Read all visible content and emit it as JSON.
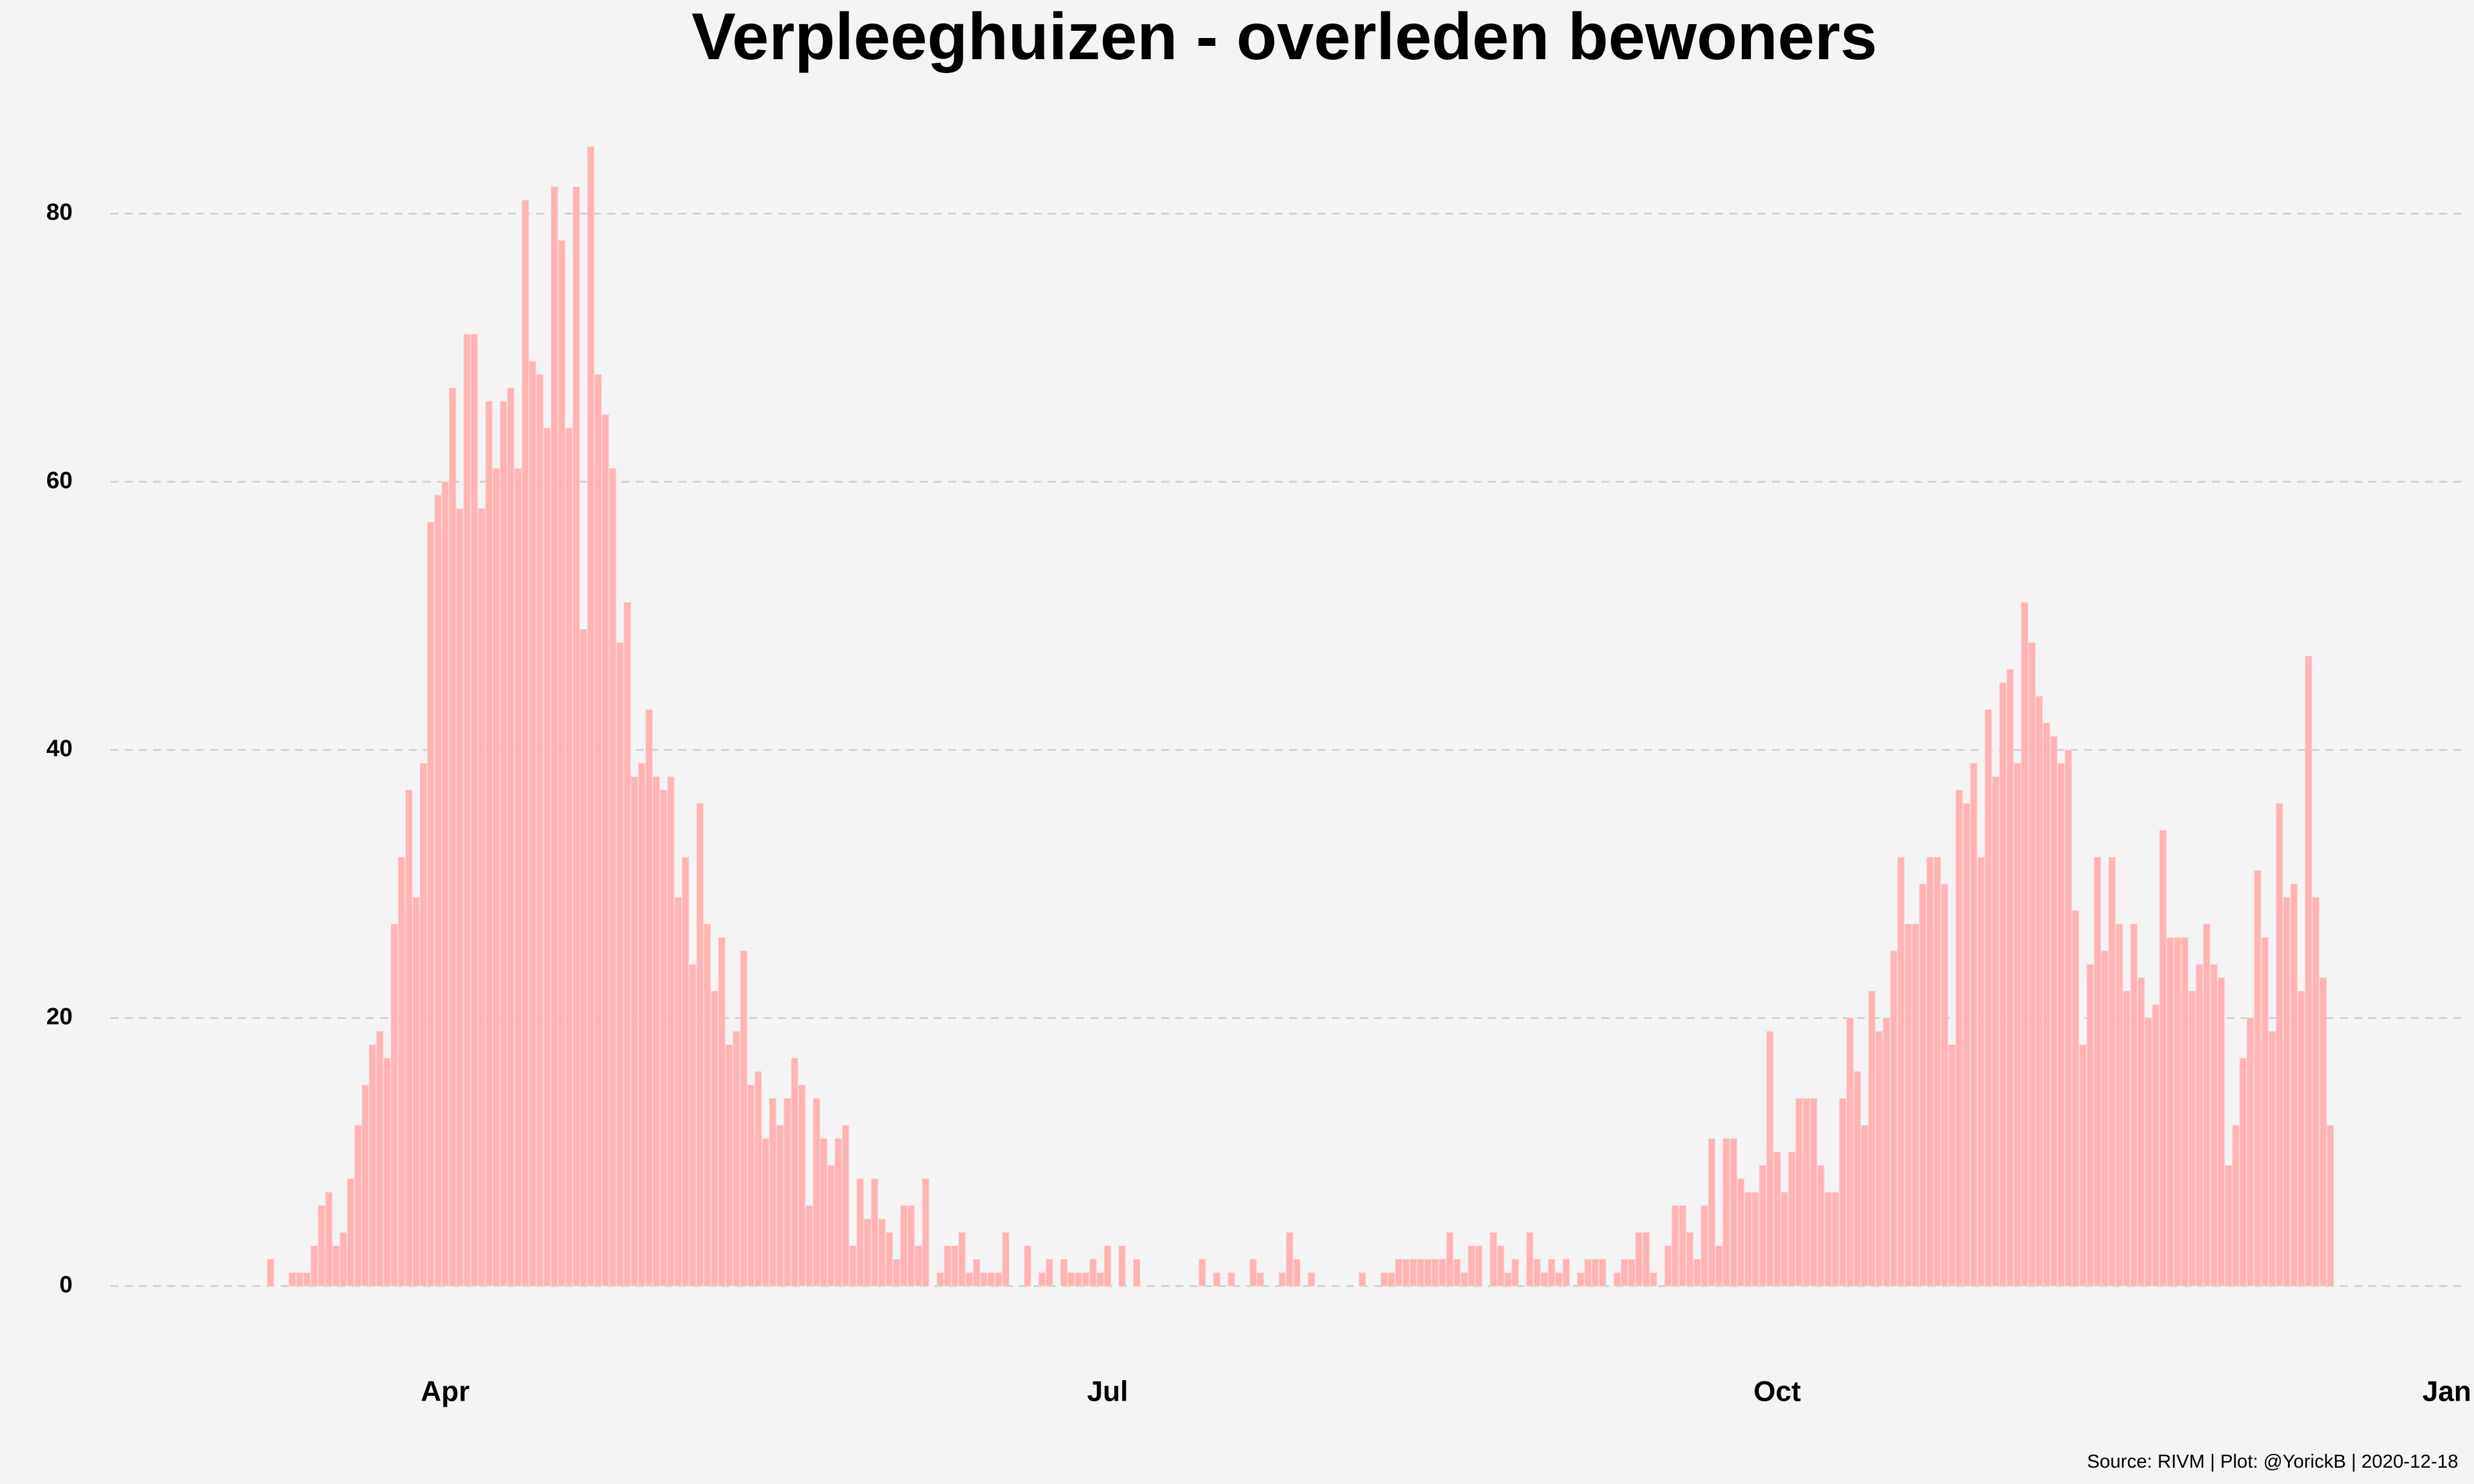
{
  "chart_data": {
    "type": "bar",
    "title": "Verpleeghuizen - overleden bewoners",
    "caption": "Source: RIVM | Plot: @YorickB |  2020-12-18",
    "color": "#ffb3b3",
    "grid": true,
    "xlim": [
      46,
      369
    ],
    "xticks": [
      {
        "value": 92,
        "label": "Apr"
      },
      {
        "value": 183,
        "label": "Jul"
      },
      {
        "value": 275,
        "label": "Oct"
      },
      {
        "value": 367,
        "label": "Jan"
      }
    ],
    "ylim": [
      -4,
      86
    ],
    "yticks": [
      0,
      20,
      40,
      60,
      80
    ],
    "x": [
      68,
      69,
      70,
      71,
      72,
      73,
      74,
      75,
      76,
      77,
      78,
      79,
      80,
      81,
      82,
      83,
      84,
      85,
      86,
      87,
      88,
      89,
      90,
      91,
      92,
      93,
      94,
      95,
      96,
      97,
      98,
      99,
      100,
      101,
      102,
      103,
      104,
      105,
      106,
      107,
      108,
      109,
      110,
      111,
      112,
      113,
      114,
      115,
      116,
      117,
      118,
      119,
      120,
      121,
      122,
      123,
      124,
      125,
      126,
      127,
      128,
      129,
      130,
      131,
      132,
      133,
      134,
      135,
      136,
      137,
      138,
      139,
      140,
      141,
      142,
      143,
      144,
      145,
      146,
      147,
      148,
      149,
      150,
      151,
      152,
      153,
      154,
      155,
      156,
      157,
      158,
      159,
      160,
      161,
      162,
      163,
      164,
      165,
      166,
      167,
      168,
      169,
      170,
      171,
      172,
      173,
      174,
      175,
      176,
      177,
      178,
      179,
      180,
      181,
      182,
      183,
      184,
      185,
      186,
      187,
      188,
      189,
      190,
      191,
      192,
      193,
      194,
      195,
      196,
      197,
      198,
      199,
      200,
      201,
      202,
      203,
      204,
      205,
      206,
      207,
      208,
      209,
      210,
      211,
      212,
      213,
      214,
      215,
      216,
      217,
      218,
      219,
      220,
      221,
      222,
      223,
      224,
      225,
      226,
      227,
      228,
      229,
      230,
      231,
      232,
      233,
      234,
      235,
      236,
      237,
      238,
      239,
      240,
      241,
      242,
      243,
      244,
      245,
      246,
      247,
      248,
      249,
      250,
      251,
      252,
      253,
      254,
      255,
      256,
      257,
      258,
      259,
      260,
      261,
      262,
      263,
      264,
      265,
      266,
      267,
      268,
      269,
      270,
      271,
      272,
      273,
      274,
      275,
      276,
      277,
      278,
      279,
      280,
      281,
      282,
      283,
      284,
      285,
      286,
      287,
      288,
      289,
      290,
      291,
      292,
      293,
      294,
      295,
      296,
      297,
      298,
      299,
      300,
      301,
      302,
      303,
      304,
      305,
      306,
      307,
      308,
      309,
      310,
      311,
      312,
      313,
      314,
      315,
      316,
      317,
      318,
      319,
      320,
      321,
      322,
      323,
      324,
      325,
      326,
      327,
      328,
      329,
      330,
      331,
      332,
      333,
      334,
      335,
      336,
      337,
      338,
      339,
      340,
      341,
      342,
      343,
      344,
      345,
      346,
      347,
      348,
      349,
      350,
      351
    ],
    "values": [
      2,
      0,
      0,
      1,
      1,
      1,
      3,
      6,
      7,
      3,
      4,
      8,
      12,
      15,
      18,
      19,
      17,
      27,
      32,
      37,
      29,
      39,
      57,
      59,
      60,
      67,
      58,
      71,
      71,
      58,
      66,
      61,
      66,
      67,
      61,
      81,
      69,
      68,
      64,
      82,
      78,
      64,
      82,
      49,
      85,
      68,
      65,
      61,
      48,
      51,
      38,
      39,
      43,
      38,
      37,
      38,
      29,
      32,
      24,
      36,
      27,
      22,
      26,
      18,
      19,
      25,
      15,
      16,
      11,
      14,
      12,
      14,
      17,
      15,
      6,
      14,
      11,
      9,
      11,
      12,
      3,
      8,
      5,
      8,
      5,
      4,
      2,
      6,
      6,
      3,
      8,
      0,
      1,
      3,
      3,
      4,
      1,
      2,
      1,
      1,
      1,
      4,
      0,
      0,
      3,
      0,
      1,
      2,
      0,
      2,
      1,
      1,
      1,
      2,
      1,
      3,
      0,
      3,
      0,
      2,
      0,
      0,
      0,
      0,
      0,
      0,
      0,
      0,
      2,
      0,
      1,
      0,
      1,
      0,
      0,
      2,
      1,
      0,
      0,
      1,
      4,
      2,
      0,
      1,
      0,
      0,
      0,
      0,
      0,
      0,
      1,
      0,
      0,
      1,
      1,
      2,
      2,
      2,
      2,
      2,
      2,
      2,
      4,
      2,
      1,
      3,
      3,
      0,
      4,
      3,
      1,
      2,
      0,
      4,
      2,
      1,
      2,
      1,
      2,
      0,
      1,
      2,
      2,
      2,
      0,
      1,
      2,
      2,
      4,
      4,
      1,
      0,
      3,
      6,
      6,
      4,
      2,
      6,
      11,
      3,
      11,
      11,
      8,
      7,
      7,
      9,
      19,
      10,
      7,
      10,
      14,
      14,
      14,
      9,
      7,
      7,
      14,
      20,
      16,
      12,
      22,
      19,
      20,
      25,
      32,
      27,
      27,
      30,
      32,
      32,
      30,
      18,
      37,
      36,
      39,
      32,
      43,
      38,
      45,
      46,
      39,
      51,
      48,
      44,
      42,
      41,
      39,
      40,
      28,
      18,
      24,
      32,
      25,
      32,
      27,
      22,
      27,
      23,
      20,
      21,
      34,
      26,
      26,
      26,
      22,
      24,
      27,
      24,
      23,
      9,
      12,
      17,
      20,
      31,
      26,
      19,
      36,
      29,
      30,
      22,
      47,
      29,
      23,
      12
    ]
  }
}
